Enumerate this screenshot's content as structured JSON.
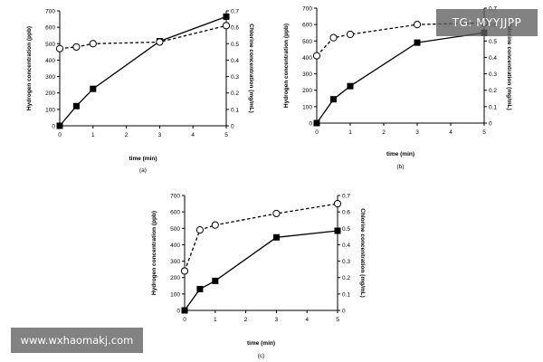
{
  "watermarks": {
    "top_right": "TG: MYYJJPP",
    "bottom_left": "www.wxhaomakj.com"
  },
  "chart_data": [
    {
      "type": "line",
      "panel_label": "(a)",
      "xlabel": "time (min)",
      "ylabel_left": "Hydrogen concentration (ppb)",
      "ylabel_right": "Chlorine concentration (mg/mL)",
      "xlim": [
        0,
        5
      ],
      "ylim_left": [
        0,
        700
      ],
      "ylim_right": [
        0,
        0.7
      ],
      "x_ticks": [
        0,
        1,
        2,
        3,
        4,
        5
      ],
      "y_ticks_left": [
        0,
        100,
        200,
        300,
        400,
        500,
        600,
        700
      ],
      "y_ticks_right": [
        0,
        0.1,
        0.2,
        0.3,
        0.4,
        0.5,
        0.6,
        0.7
      ],
      "series": [
        {
          "axis": "left",
          "marker": "filled-square",
          "line": "solid",
          "x": [
            0,
            0.5,
            1,
            3,
            5
          ],
          "y": [
            0,
            120,
            225,
            515,
            665
          ]
        },
        {
          "axis": "right",
          "marker": "open-circle",
          "line": "dashed",
          "x": [
            0,
            0.5,
            1,
            3,
            5
          ],
          "y": [
            0.47,
            0.48,
            0.5,
            0.51,
            0.61
          ]
        }
      ]
    },
    {
      "type": "line",
      "panel_label": "(b)",
      "xlabel": "time (min)",
      "ylabel_left": "Hydrogen concentration (ppb)",
      "ylabel_right": "Chlorine concentration (mg/mL)",
      "xlim": [
        0,
        5
      ],
      "ylim_left": [
        0,
        700
      ],
      "ylim_right": [
        0,
        0.7
      ],
      "x_ticks": [
        0,
        1,
        2,
        3,
        4,
        5
      ],
      "y_ticks_left": [
        0,
        100,
        200,
        300,
        400,
        500,
        600,
        700
      ],
      "y_ticks_right": [
        0,
        0.1,
        0.2,
        0.3,
        0.4,
        0.5,
        0.6,
        0.7
      ],
      "series": [
        {
          "axis": "left",
          "marker": "filled-square",
          "line": "solid",
          "x": [
            0,
            0.5,
            1,
            3,
            5
          ],
          "y": [
            0,
            145,
            225,
            490,
            550
          ]
        },
        {
          "axis": "right",
          "marker": "open-circle",
          "line": "dashed",
          "x": [
            0,
            0.5,
            1,
            3,
            5
          ],
          "y": [
            0.41,
            0.52,
            0.54,
            0.6,
            0.61
          ]
        }
      ]
    },
    {
      "type": "line",
      "panel_label": "(c)",
      "xlabel": "time (min)",
      "ylabel_left": "Hydrogen concentration (ppb)",
      "ylabel_right": "Chlorine concentration (mg/mL)",
      "xlim": [
        0,
        5
      ],
      "ylim_left": [
        0,
        700
      ],
      "ylim_right": [
        0,
        0.7
      ],
      "x_ticks": [
        0,
        1,
        2,
        3,
        4,
        5
      ],
      "y_ticks_left": [
        0,
        100,
        200,
        300,
        400,
        500,
        600,
        700
      ],
      "y_ticks_right": [
        0,
        0.1,
        0.2,
        0.3,
        0.4,
        0.5,
        0.6,
        0.7
      ],
      "series": [
        {
          "axis": "left",
          "marker": "filled-square",
          "line": "solid",
          "x": [
            0,
            0.5,
            1,
            3,
            5
          ],
          "y": [
            0,
            130,
            180,
            445,
            485
          ]
        },
        {
          "axis": "right",
          "marker": "open-circle",
          "line": "dashed",
          "x": [
            0,
            0.5,
            1,
            3,
            5
          ],
          "y": [
            0.24,
            0.49,
            0.52,
            0.59,
            0.65
          ]
        }
      ]
    }
  ]
}
